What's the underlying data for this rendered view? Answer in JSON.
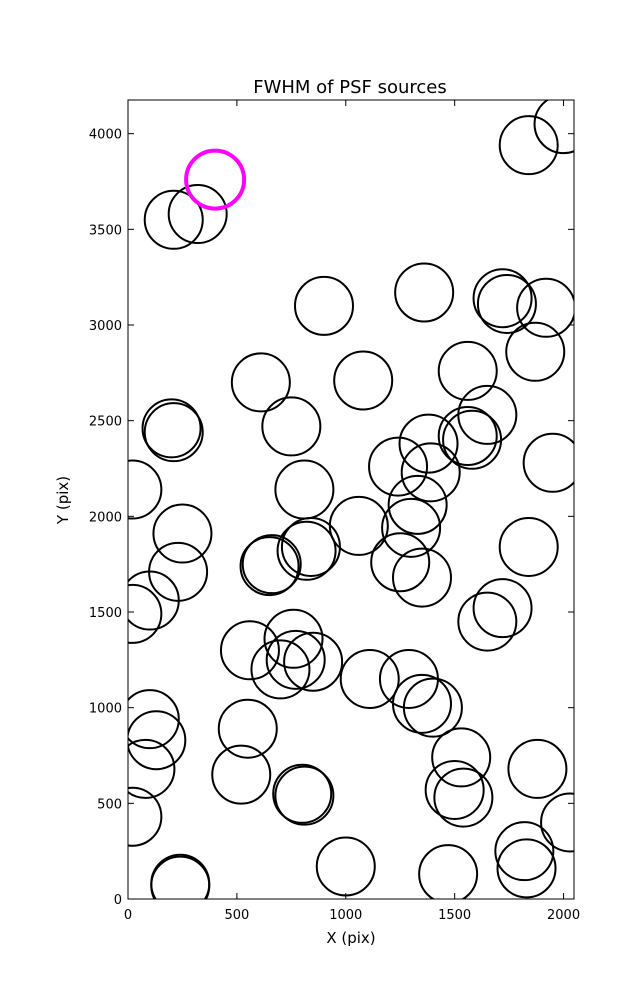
{
  "chart_data": {
    "type": "scatter",
    "title": "FWHM of PSF sources",
    "xlabel": "X (pix)",
    "ylabel": "Y (pix)",
    "xlim": [
      0,
      2048
    ],
    "ylim": [
      0,
      4176
    ],
    "xticks": [
      0,
      500,
      1000,
      1500,
      2000
    ],
    "yticks": [
      0,
      500,
      1000,
      1500,
      2000,
      2500,
      3000,
      3500,
      4000
    ],
    "grid": false,
    "marker": "open circle",
    "colors": {
      "sources": "#000000",
      "highlight": "#ff00ff"
    },
    "series": [
      {
        "x": [
          2000,
          1840,
          210,
          320,
          1720,
          1740,
          1920,
          1360,
          900,
          1080,
          1560,
          1870,
          610,
          750,
          1650,
          1560,
          1580,
          200,
          210,
          1380,
          1240,
          1390,
          1950,
          20,
          810,
          1330,
          1060,
          1300,
          250,
          840,
          820,
          1840,
          1250,
          660,
          650,
          1350,
          230,
          1720,
          100,
          20,
          1650,
          560,
          760,
          770,
          700,
          850,
          1110,
          1290,
          1350,
          1400,
          100,
          130,
          550,
          80,
          1530,
          1880,
          520,
          1500,
          1540,
          800,
          810,
          20,
          2030,
          1820,
          1830,
          1000,
          1470,
          240,
          240
        ],
        "y": [
          4050,
          3940,
          3550,
          3580,
          3140,
          3110,
          3090,
          3170,
          3100,
          2710,
          2760,
          2860,
          2700,
          2470,
          2530,
          2420,
          2400,
          2460,
          2440,
          2380,
          2260,
          2230,
          2280,
          2140,
          2140,
          2060,
          1950,
          1940,
          1910,
          1840,
          1820,
          1840,
          1760,
          1750,
          1740,
          1680,
          1710,
          1520,
          1560,
          1490,
          1450,
          1300,
          1360,
          1250,
          1200,
          1240,
          1150,
          1150,
          1020,
          1000,
          940,
          830,
          890,
          680,
          740,
          680,
          650,
          570,
          530,
          550,
          540,
          430,
          400,
          250,
          160,
          170,
          130,
          70,
          80
        ]
      },
      {
        "x": [
          400
        ],
        "y": [
          3760
        ]
      }
    ]
  }
}
